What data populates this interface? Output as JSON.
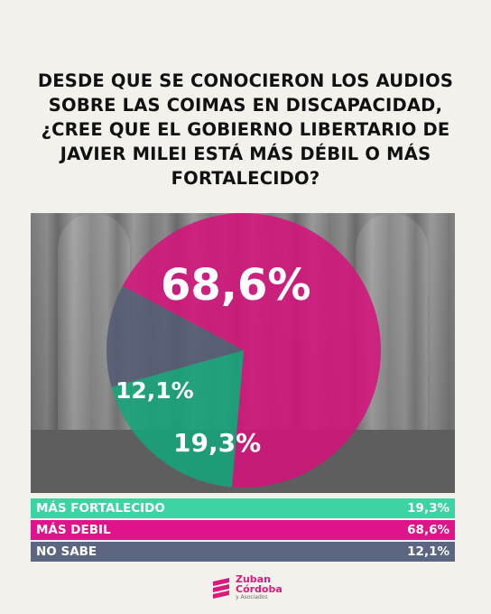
{
  "question": "DESDE QUE SE CONOCIERON LOS AUDIOS SOBRE LAS COIMAS EN DISCAPACIDAD, ¿CREE QUE EL GOBIERNO LIBERTARIO DE JAVIER MILEI ESTÁ MÁS DÉBIL O MÁS FORTALECIDO?",
  "chart_data": {
    "type": "pie",
    "title": "DESDE QUE SE CONOCIERON LOS AUDIOS SOBRE LAS COIMAS EN DISCAPACIDAD, ¿CREE QUE EL GOBIERNO LIBERTARIO DE JAVIER MILEI ESTÁ MÁS DÉBIL O MÁS FORTALECIDO?",
    "slices": [
      {
        "label": "MÁS DEBIL",
        "value": 68.6,
        "display": "68,6%",
        "color": "#d4137c"
      },
      {
        "label": "MÁS FORTALECIDO",
        "value": 19.3,
        "display": "19,3%",
        "color": "#16a57c"
      },
      {
        "label": "NO SABE",
        "value": 12.1,
        "display": "12,1%",
        "color": "#545b73"
      }
    ],
    "legend_placement": "bottom"
  },
  "legend": [
    {
      "label": "MÁS FORTALECIDO",
      "value": "19,3%",
      "color": "#3cd3a5"
    },
    {
      "label": "MÁS DEBIL",
      "value": "68,6%",
      "color": "#e0148a"
    },
    {
      "label": "NO SABE",
      "value": "12,1%",
      "color": "#5d6680"
    }
  ],
  "brand": {
    "line1": "Zuban",
    "line2": "Córdoba",
    "line3": "y Asociados",
    "color": "#d81b7a"
  }
}
